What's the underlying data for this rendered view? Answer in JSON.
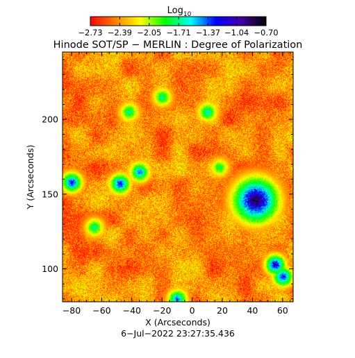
{
  "chart_data": {
    "type": "heatmap",
    "title": "Hinode SOT/SP − MERLIN : Degree of Polarization",
    "subtitle": "6−Jul−2022 23:27:35.436",
    "xlabel": "X (Arcseconds)",
    "ylabel": "Y (Arcseconds)",
    "xlim": [
      -86,
      67
    ],
    "ylim": [
      78,
      245
    ],
    "x_ticks": [
      -80,
      -60,
      -40,
      -20,
      0,
      20,
      40,
      60
    ],
    "x_tick_labels": [
      "−80",
      "−60",
      "−40",
      "−20",
      "0",
      "20",
      "40",
      "60"
    ],
    "y_ticks": [
      100,
      150,
      200
    ],
    "y_tick_labels": [
      "100",
      "150",
      "200"
    ],
    "colorbar": {
      "label_base": "Log",
      "label_sub": "10",
      "min": -2.73,
      "max": -0.7,
      "tick_values": [
        -2.73,
        -2.39,
        -2.05,
        -1.71,
        -1.37,
        -1.04,
        -0.7
      ],
      "tick_labels": [
        "−2.73",
        "−2.39",
        "−2.05",
        "−1.71",
        "−1.37",
        "−1.04",
        "−0.70"
      ],
      "colormap": "rainbow (red → yellow → green → cyan → blue → violet → black)"
    },
    "features": [
      {
        "kind": "sunspot",
        "x": 42,
        "y": 146,
        "value": -0.7
      },
      {
        "kind": "network",
        "x": -80,
        "y": 158,
        "value": -1.1
      },
      {
        "kind": "network",
        "x": -48,
        "y": 157,
        "value": -1.1
      },
      {
        "kind": "network",
        "x": -35,
        "y": 165,
        "value": -1.3
      },
      {
        "kind": "network",
        "x": -42,
        "y": 205,
        "value": -1.6
      },
      {
        "kind": "network",
        "x": -20,
        "y": 215,
        "value": -1.6
      },
      {
        "kind": "network",
        "x": 10,
        "y": 205,
        "value": -1.5
      },
      {
        "kind": "network",
        "x": 55,
        "y": 103,
        "value": -1.0
      },
      {
        "kind": "network",
        "x": 60,
        "y": 95,
        "value": -1.1
      },
      {
        "kind": "network",
        "x": -65,
        "y": 128,
        "value": -1.6
      },
      {
        "kind": "network",
        "x": -10,
        "y": 80,
        "value": -1.3
      },
      {
        "kind": "network",
        "x": 18,
        "y": 168,
        "value": -1.7
      }
    ]
  },
  "colors": {
    "background": "#ffffff",
    "axes": "#000000",
    "colormap_stops": [
      "#ff0000",
      "#ff8000",
      "#ffff00",
      "#00ff00",
      "#00ffff",
      "#0000ff",
      "#4000a0",
      "#000000"
    ]
  }
}
